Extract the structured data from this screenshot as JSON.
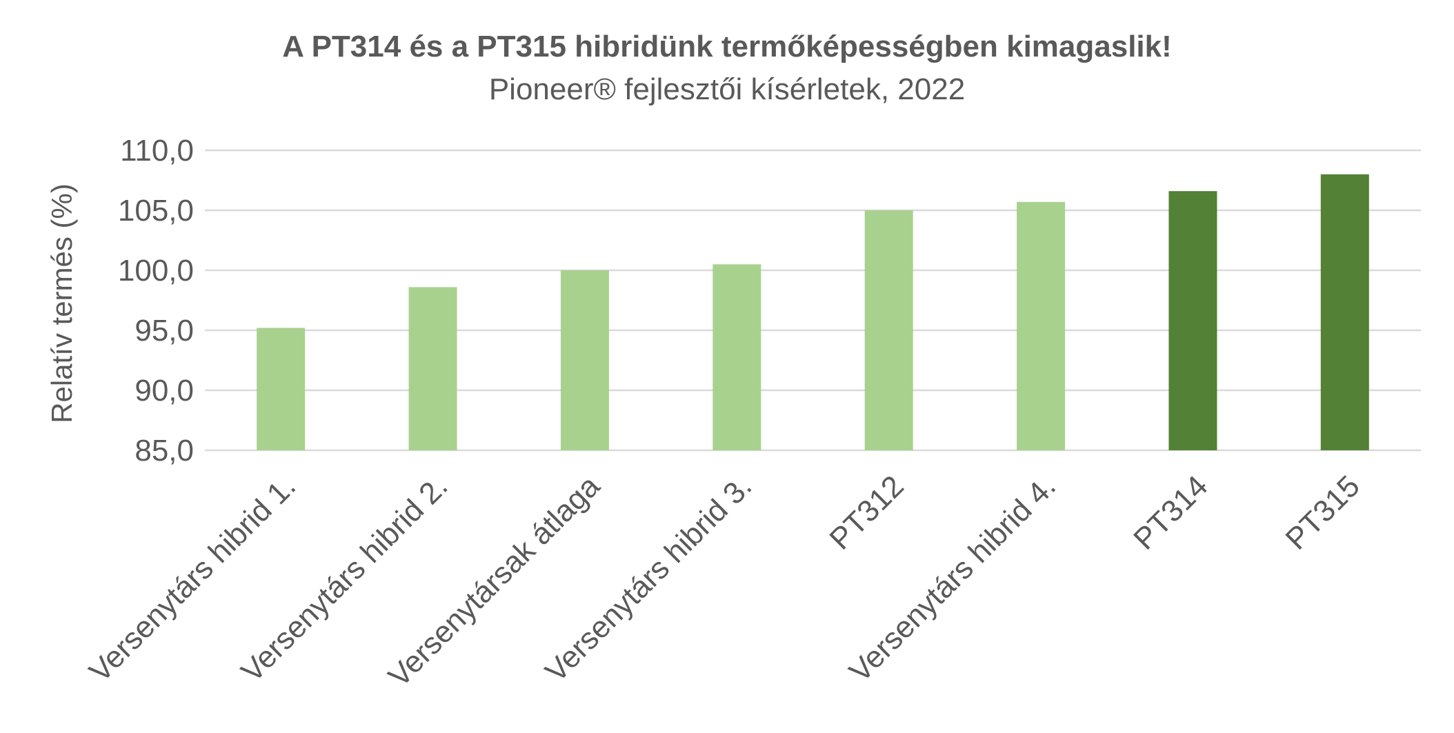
{
  "chart_data": {
    "type": "bar",
    "title": "A PT314 és a PT315 hibridünk termőképességben kimagaslik!",
    "subtitle": "Pioneer® fejlesztői kísérletek, 2022",
    "xlabel": "",
    "ylabel": "Relatív termés (%)",
    "ylim": [
      85,
      110
    ],
    "yticks": [
      "85,0",
      "90,0",
      "95,0",
      "100,0",
      "105,0",
      "110,0"
    ],
    "categories": [
      "Versenytárs hibrid 1.",
      "Versenytárs hibrid 2.",
      "Versenytársak átlaga",
      "Versenytárs hibrid 3.",
      "PT312",
      "Versenytárs hibrid 4.",
      "PT314",
      "PT315"
    ],
    "values": [
      95.2,
      98.6,
      100.0,
      100.5,
      105.0,
      105.7,
      106.6,
      108.0
    ],
    "colors": [
      "#a9d18e",
      "#a9d18e",
      "#a9d18e",
      "#a9d18e",
      "#a9d18e",
      "#a9d18e",
      "#538135",
      "#538135"
    ],
    "grid": true,
    "legend": "none"
  }
}
